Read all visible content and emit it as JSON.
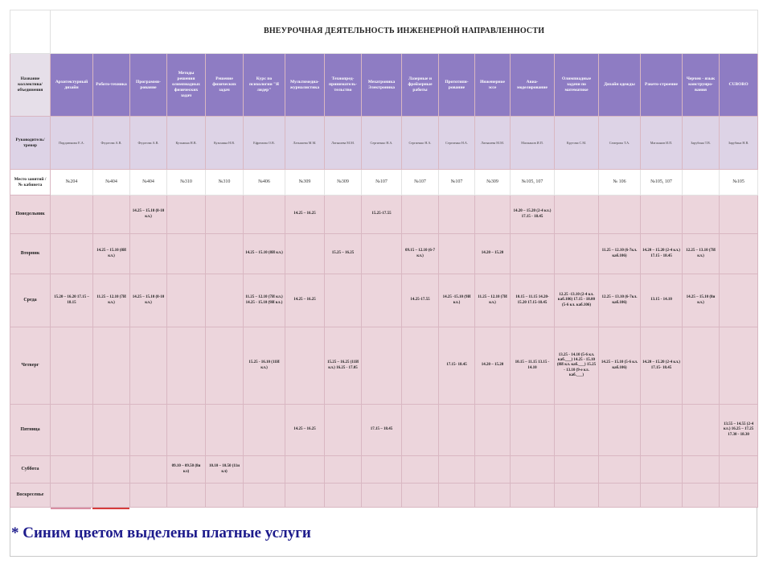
{
  "title": "ВНЕУРОЧНАЯ ДЕЯТЕЛЬНОСТЬ ИНЖЕНЕРНОЙ НАПРАВЛЕННОСТИ",
  "row_labels": {
    "name": "Название коллектива/ объединения",
    "leader": "Руководитель/ тренер",
    "room": "Место занятий /№ кабинета"
  },
  "columns": [
    {
      "name": "Архитектурный дизайн",
      "leader": "Пирдиюнова Е.А.",
      "room": "№204"
    },
    {
      "name": "Робото-техника",
      "leader": "Федотова А.В.",
      "room": "№404"
    },
    {
      "name": "Программи-рование",
      "leader": "Федотова А.В.",
      "room": "№404"
    },
    {
      "name": "Методы решения олимпиадных физических задач",
      "leader": "Кузьмина Н.В.",
      "room": "№310"
    },
    {
      "name": "Решение физических задач",
      "leader": "Кузьмина Н.В.",
      "room": "№310"
    },
    {
      "name": "Курс по психологии \"Я лидер\"",
      "leader": "Ефремова О.В.",
      "room": "№406"
    },
    {
      "name": "Мультимедиа-журналистика",
      "leader": "Латышева М.М.",
      "room": "№309"
    },
    {
      "name": "Технопред-приниматель-тельство",
      "leader": "Латышева М.М.",
      "room": "№309"
    },
    {
      "name": "Мехатроника Электроника",
      "leader": "Сергиенко Н.А.",
      "room": "№107"
    },
    {
      "name": "Лазерные и фрейзерные работы",
      "leader": "Сергиенко Н.А.",
      "room": "№107"
    },
    {
      "name": "Прототипи-рование",
      "leader": "Сергиенко Н.А.",
      "room": "№107"
    },
    {
      "name": "Инженерное эссе",
      "leader": "Латышева М.М.",
      "room": "№309"
    },
    {
      "name": "Авиа-моделирование",
      "leader": "Магжанов И.П.",
      "room": "№105, 107"
    },
    {
      "name": "Олимпиадные задачи по математике",
      "leader": "Крутова С.М.",
      "room": ""
    },
    {
      "name": "Дизайн одежды",
      "leader": "Семерова Т.А.",
      "room": "№ 106"
    },
    {
      "name": "Ракето-строение",
      "leader": "Магжанов И.П.",
      "room": "№105, 107"
    },
    {
      "name": "Черчен - язык конструиро-вания",
      "leader": "Зарубина Т.В.",
      "room": ""
    },
    {
      "name": "CUBORO",
      "leader": "Зарубина Н.В.",
      "room": "№105"
    }
  ],
  "days": [
    {
      "label": "Понедельник",
      "cells": [
        "",
        "",
        "14.25 – 15.10 (8-10 кл.)",
        "",
        "",
        "",
        "14.25 – 16.25",
        "",
        "15.25-17.55",
        "",
        "",
        "",
        "14.20 – 15.20 (2-4 кл.) 17.15 - 18.45",
        "",
        "",
        "",
        "",
        ""
      ]
    },
    {
      "label": "Вторник",
      "cells": [
        "",
        "14.25 – 15.10 (8И кл.)",
        "",
        "",
        "",
        "14.25 – 15.10 (8И кл.)",
        "",
        "15.25 – 16.25",
        "",
        "09.15 – 12.10 (6-7 кл.)",
        "",
        "14.20 – 15.20",
        "",
        "",
        "11.25 – 12.10 (6-7кл. каб.106)",
        "14.20 – 15.20 (2-4 кл.) 17.15 - 18.45",
        "12.25 – 13.10 (7И кл.)",
        ""
      ]
    },
    {
      "label": "Среда",
      "cells": [
        "15.20 – 16.20 17.15 – 18.15",
        "11.25 – 12.10 (7И кл.)",
        "14.25 – 15.10 (8-10 кл.)",
        "",
        "",
        "11.25 – 12.10 (7И кл.) 14.25 - 15.10 (9И кл.)",
        "14.25 – 16.25",
        "",
        "",
        "14.25-17.55",
        "14.25 -15.10 (9И кл.)",
        "11.25 – 12.10 (7И кл.)",
        "10.15 – 11.15 14.20-15.20 17.15-18.45",
        "12.25 -13.10 (2-4 кл. каб.106) 17.15 - 18.00 (5-6 кл. каб.106)",
        "12.25 – 13.10 (6-7кл. каб.106)",
        "13.15 - 14.10",
        "14.25 – 15.10 (8и кл.)",
        ""
      ]
    },
    {
      "label": "Четверг",
      "cells": [
        "",
        "",
        "",
        "",
        "",
        "15.25 - 16.10 (11И кл.)",
        "",
        "15.25 – 16.25 (11И кл.) 16.25 - 17.05",
        "",
        "",
        "17.15- 18.45",
        "14.20 – 15.20",
        "10.15 – 11.15 13.15 - 14.10",
        "13.25 - 14.10 (5-6 кл. каб.___) 14.25 - 15.10 (8И кл. каб.___) 15.25 - 13.10 (9-е кл. каб.___)",
        "14.25 – 15.10 (5-6 кл. каб.106)",
        "14.20 – 15.20 (2-4 кл.) 17.15- 18.45",
        "",
        ""
      ]
    },
    {
      "label": "Пятница",
      "cells": [
        "",
        "",
        "",
        "",
        "",
        "",
        "14.25 – 16.25",
        "",
        "17.15 – 18.45",
        "",
        "",
        "",
        "",
        "",
        "",
        "",
        "",
        "13.55 – 14.55 (2-4 кл.) 16.25 – 17.25 17.30 - 18.30"
      ]
    },
    {
      "label": "Суббота",
      "cells": [
        "",
        "",
        "",
        "09.10 – 09.50 (8и кл)",
        "10.10 – 10.50 (11и кл)",
        "",
        "",
        "",
        "",
        "",
        "",
        "",
        "",
        "",
        "",
        "",
        "",
        ""
      ]
    },
    {
      "label": "Воскресенье",
      "cells": [
        "",
        "",
        "",
        "",
        "",
        "",
        "",
        "",
        "",
        "",
        "",
        "",
        "",
        "",
        "",
        "",
        "",
        ""
      ]
    }
  ],
  "footnote": "* Синим цветом выделены платные услуги"
}
